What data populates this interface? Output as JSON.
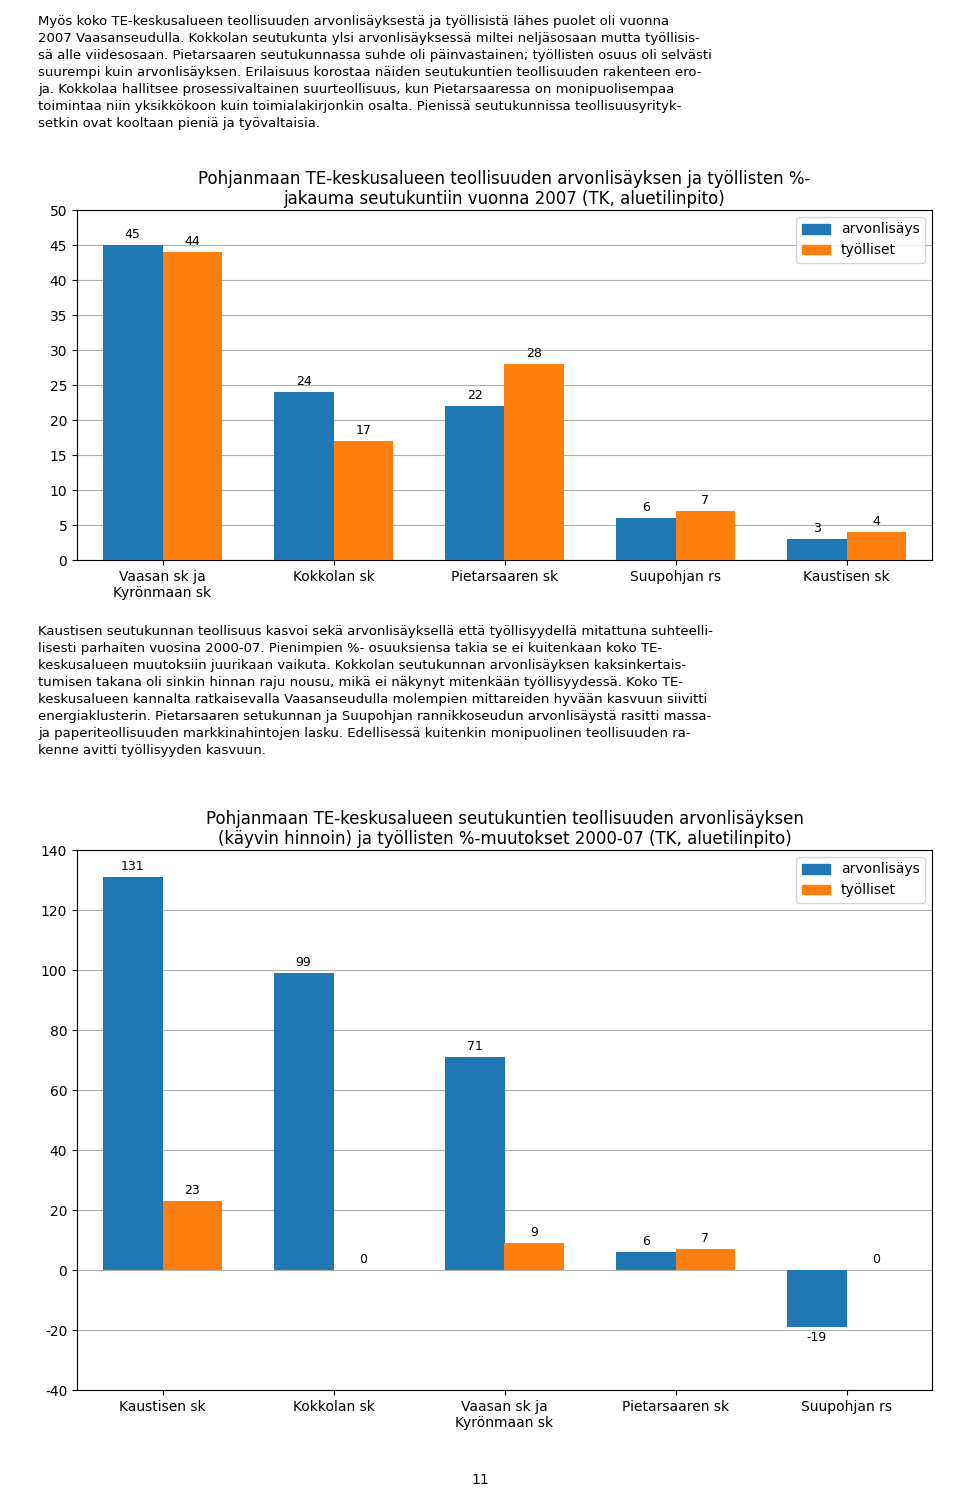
{
  "chart_data": [
    {
      "type": "bar",
      "title": "Pohjanmaan TE-keskusalueen teollisuuden arvonlisäyksen ja työllisten %-\njakauma seutukuntiin vuonna 2007 (TK, aluetilinpito)",
      "categories": [
        "Vaasan sk ja\nKyrönmaan sk",
        "Kokkolan sk",
        "Pietarsaaren sk",
        "Suupohjan rs",
        "Kaustisen sk"
      ],
      "series": [
        {
          "name": "arvonlisäys",
          "values": [
            45,
            24,
            22,
            6,
            3
          ]
        },
        {
          "name": "työlliset",
          "values": [
            44,
            17,
            28,
            7,
            4
          ]
        }
      ],
      "ylim": [
        0,
        50
      ],
      "yticks": [
        0,
        5,
        10,
        15,
        20,
        25,
        30,
        35,
        40,
        45,
        50
      ],
      "grid": true,
      "legend": "upper right",
      "data_labels": true
    },
    {
      "type": "bar",
      "title": "Pohjanmaan TE-keskusalueen seutukuntien teollisuuden arvonlisäyksen\n(käyvin hinnoin) ja työllisten %-muutokset 2000-07 (TK, aluetilinpito)",
      "categories": [
        "Kaustisen sk",
        "Kokkolan sk",
        "Vaasan sk ja\nKyrönmaan sk",
        "Pietarsaaren sk",
        "Suupohjan rs"
      ],
      "series": [
        {
          "name": "arvonlisäys",
          "values": [
            131,
            99,
            71,
            6,
            -19
          ]
        },
        {
          "name": "työlliset",
          "values": [
            23,
            0,
            9,
            7,
            0
          ]
        }
      ],
      "ylim": [
        -40,
        140
      ],
      "yticks": [
        -40,
        -20,
        0,
        20,
        40,
        60,
        80,
        100,
        120,
        140
      ],
      "grid": true,
      "legend": "upper right",
      "data_labels": true
    }
  ],
  "annotations": [
    "Myös koko TE-keskusalueen teollisuuden arvonlisäyksestä ja työllisistä lähes puolet oli vuonna\n2007 Vaasanseudulla. Kokkolan seutukunta ylsi arvonlisäyksessä miltei neljäsosaan mutta työllisis-\nsä alle viidesosaan. Pietarsaaren seutukunnassa suhde oli päinvastainen; työllisten osuus oli selvästi\nsuurempi kuin arvonlisäyksen. Erilaisuus korostaa näiden seutukuntien teollisuuden rakenteen ero-\nja. Kokkolaa hallitsee prosessivaltainen suurteollisuus, kun Pietarsaaressa on monipuolisempaa\ntoimintaa niin yksikkökoon kuin toimialakirjonkin osalta. Pienissä seutukunnissa teollisuusyrityk-\nsetkin ovat kooltaan pieniä ja työvaltaisia.",
    "Kaustisen seutukunnan teollisuus kasvoi sekä arvonlisäyksellä että työllisyydellä mitattuna suhteelli-\nlisesti parhaiten vuosina 2000-07. Pienimpien %- osuuksiensa takia se ei kuitenkaan koko TE-\nkeskusalueen muutoksiin juurikaan vaikuta. Kokkolan seutukunnan arvonlisäyksen kaksinkertais-\ntumisen takana oli sinkin hinnan raju nousu, mikä ei näkynyt mitenkään työllisyydessä. Koko TE-\nkeskusalueen kannalta ratkaisevalla Vaasanseudulla molempien mittareiden hyvään kasvuun siivitti\nenergiaklusterin. Pietarsaaren setukunnan ja Suupohjan rannikkoseudun arvonlisäystä rasitti massa-\nja paperiteollisuuden markkinahintojen lasku. Edellisessä kuitenkin monipuolinen teollisuuden ra-\nkenne avitti työllisyyden kasvuun.",
    "11"
  ]
}
